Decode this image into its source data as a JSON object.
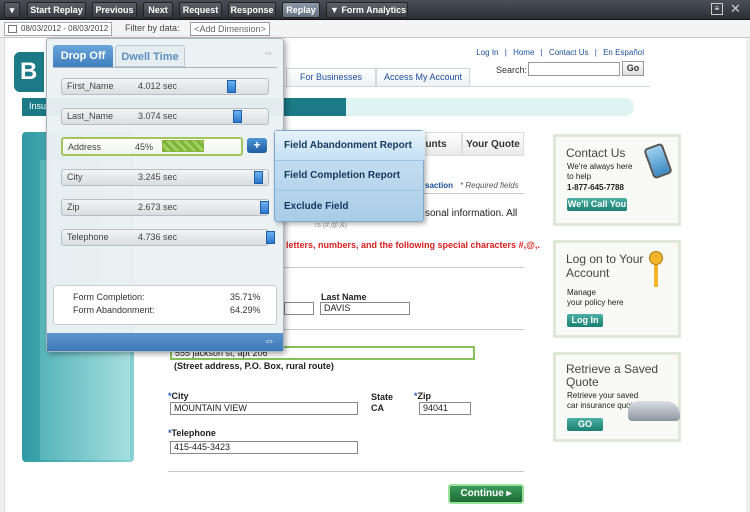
{
  "toolbar": {
    "items": [
      {
        "label": "Start Replay"
      },
      {
        "label": "Previous"
      },
      {
        "label": "Next"
      },
      {
        "label": "Request"
      },
      {
        "label": "Response"
      },
      {
        "label": "Replay"
      },
      {
        "label": "Form Analytics"
      }
    ]
  },
  "filterbar": {
    "date_range": "08/03/2012 - 08/03/2012",
    "filter_label": "Filter by data:",
    "dimension_placeholder": "<Add Dimension>"
  },
  "site": {
    "logo_letter": "B",
    "links": [
      "Log In",
      "|",
      "Home",
      "|",
      "Contact Us",
      "|",
      "En Español"
    ],
    "search_label": "Search:",
    "go": "Go",
    "nav_tabs": [
      "For Businesses",
      "Access My Account"
    ],
    "progress_label": "Insu",
    "quote_tabs": [
      "unts",
      "Your Quote"
    ],
    "transaction_tail": "saction",
    "required_note": "* Required fields",
    "info_text": "sonal information. All",
    "info_text2": "rs (#,@,&)",
    "warn_text": "letters, numbers, and the following special characters #,@,.",
    "last_name_label": "Last Name",
    "last_name_value": "DAVIS",
    "address_value": "555 jackson st, apt 206",
    "address_hint": "(Street address, P.O. Box, rural route)",
    "city_label": "City",
    "city_value": "MOUNTAIN VIEW",
    "state_label": "State",
    "state_value": "CA",
    "zip_label": "Zip",
    "zip_value": "94041",
    "phone_label": "Telephone",
    "phone_value": "415-445-3423",
    "continue": "Continue ▸"
  },
  "side_boxes": {
    "contact": {
      "title": "Contact Us",
      "sub1": "We're always here",
      "sub2": "to help",
      "phone": "1-877-645-7788",
      "button": "We'll Call You"
    },
    "logon": {
      "title1": "Log on to Your",
      "title2": "Account",
      "sub1": "Manage",
      "sub2": "your policy here",
      "button": "Log In"
    },
    "retrieve": {
      "title1": "Retrieve a Saved",
      "title2": "Quote",
      "sub1": "Retrieve your saved",
      "sub2": "car insurance quote",
      "button": "GO"
    }
  },
  "overlay": {
    "tabs": [
      "Drop Off",
      "Dwell Time"
    ],
    "rows": [
      {
        "name": "First_Name",
        "value": "4.012 sec",
        "level": 0.7
      },
      {
        "name": "Last_Name",
        "value": "3.074 sec",
        "level": 0.74
      },
      {
        "name": "Address",
        "value": "45%",
        "level": 0.45
      },
      {
        "name": "City",
        "value": "3.245 sec",
        "level": 0.88
      },
      {
        "name": "Zip",
        "value": "2.673 sec",
        "level": 0.92
      },
      {
        "name": "Telephone",
        "value": "4.736 sec",
        "level": 0.96
      }
    ],
    "summary": [
      {
        "k": "Form Completion:",
        "v": "35.71%"
      },
      {
        "k": "Form Abandonment:",
        "v": "64.29%"
      }
    ],
    "plus": "+"
  },
  "menu": {
    "items": [
      "Field Abandonment Report",
      "Field Completion Report",
      "Exclude Field"
    ]
  },
  "colors": {
    "toolbar": "#2b2f35",
    "teal": "#1b7a86",
    "menu": "#a9cce7",
    "accent_blue": "#2b79cf",
    "green": "#7ab63a"
  }
}
